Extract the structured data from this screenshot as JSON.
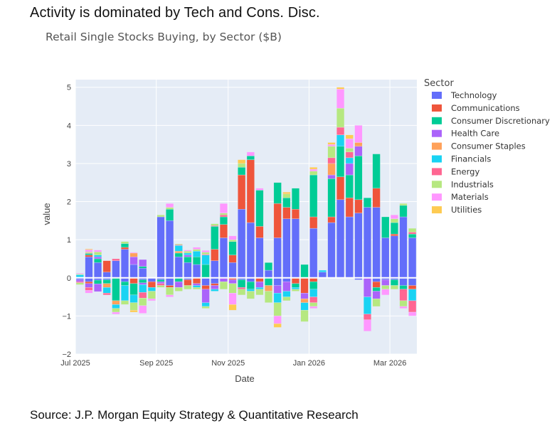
{
  "headline": "Activity is dominated by Tech and Cons. Disc.",
  "source": "Source: J.P. Morgan Equity Strategy & Quantitative Research",
  "chart_data": {
    "type": "bar",
    "stacked": true,
    "title": "Retail Single Stocks Buying, by Sector ($B)",
    "xlabel": "Date",
    "ylabel": "value",
    "ylim": [
      -2,
      5.2
    ],
    "yticks": [
      -2,
      -1,
      0,
      1,
      2,
      3,
      4,
      5
    ],
    "x_tick_labels": [
      "Jul 2025",
      "Sep 2025",
      "Nov 2025",
      "Jan 2026",
      "Mar 2026"
    ],
    "x_tick_week_index": [
      0,
      9,
      17,
      26,
      35
    ],
    "legend_title": "Sector",
    "grid": true,
    "sectors": [
      {
        "name": "Technology",
        "color": "#636EFA"
      },
      {
        "name": "Communications",
        "color": "#EF553B"
      },
      {
        "name": "Consumer Discretionary",
        "color": "#00CC96"
      },
      {
        "name": "Health Care",
        "color": "#AB63FA"
      },
      {
        "name": "Consumer Staples",
        "color": "#FFA15A"
      },
      {
        "name": "Financials",
        "color": "#19D3F3"
      },
      {
        "name": "Energy",
        "color": "#FF6692"
      },
      {
        "name": "Industrials",
        "color": "#B6E880"
      },
      {
        "name": "Materials",
        "color": "#FF97FF"
      },
      {
        "name": "Utilities",
        "color": "#FECB52"
      }
    ],
    "weeks": [
      {
        "pos": [
          0,
          0,
          0.02,
          0,
          0,
          0.06,
          0,
          0.02,
          0.02,
          0
        ],
        "neg": [
          -0.05,
          0,
          0,
          -0.05,
          0,
          0,
          -0.03,
          -0.05,
          0,
          0
        ]
      },
      {
        "pos": [
          0.55,
          0.05,
          0.04,
          0,
          0.02,
          0,
          0,
          0.02,
          0.06,
          0.02
        ],
        "neg": [
          -0.1,
          -0.05,
          0,
          -0.1,
          0,
          0,
          -0.08,
          0,
          -0.07,
          0
        ]
      },
      {
        "pos": [
          0.4,
          0,
          0.1,
          0.05,
          0,
          0.05,
          0,
          0.08,
          0.05,
          0
        ],
        "neg": [
          -0.06,
          0,
          -0.1,
          -0.2,
          0,
          0,
          0,
          0,
          0,
          0
        ]
      },
      {
        "pos": [
          0.15,
          0.3,
          0,
          0,
          0,
          0,
          0,
          0,
          0,
          0
        ],
        "neg": [
          -0.05,
          0,
          -0.1,
          0,
          -0.1,
          -0.15,
          -0.05,
          0,
          0,
          0
        ]
      },
      {
        "pos": [
          0.45,
          0,
          0,
          0,
          0,
          0,
          0.05,
          0,
          0,
          0
        ],
        "neg": [
          0,
          0,
          -0.6,
          0,
          -0.1,
          -0.1,
          0,
          -0.1,
          -0.05,
          0
        ]
      },
      {
        "pos": [
          0.75,
          0.05,
          0.1,
          0,
          0,
          0,
          0,
          0.05,
          0,
          0
        ],
        "neg": [
          -0.1,
          0,
          -0.1,
          0,
          0,
          -0.4,
          0,
          -0.1,
          0,
          0
        ]
      },
      {
        "pos": [
          0.35,
          0,
          0,
          0.2,
          0.1,
          0,
          0,
          0,
          0.02,
          0
        ],
        "neg": [
          0,
          -0.15,
          -0.3,
          0,
          0,
          -0.2,
          0,
          -0.2,
          0,
          -0.05
        ]
      },
      {
        "pos": [
          0.25,
          0,
          0.05,
          0.18,
          0,
          0,
          0,
          0,
          0,
          0
        ],
        "neg": [
          -0.05,
          0,
          -0.08,
          -0.05,
          0,
          -0.2,
          -0.15,
          -0.2,
          -0.2,
          0
        ]
      },
      {
        "pos": [
          0,
          0,
          0,
          0,
          0,
          0,
          0,
          0,
          0,
          0
        ],
        "neg": [
          -0.1,
          -0.15,
          0,
          0,
          0,
          -0.1,
          0,
          -0.2,
          -0.05,
          0
        ]
      },
      {
        "pos": [
          1.6,
          0,
          0,
          0,
          0,
          0,
          0,
          0.05,
          0,
          0
        ],
        "neg": [
          -0.05,
          0,
          -0.05,
          -0.05,
          0,
          0,
          -0.05,
          -0.05,
          0,
          0
        ]
      },
      {
        "pos": [
          1.5,
          0,
          0.3,
          0,
          0,
          0,
          0,
          0.05,
          0.1,
          0
        ],
        "neg": [
          -0.2,
          -0.05,
          0,
          0,
          0,
          0,
          0,
          -0.2,
          -0.05,
          0
        ]
      },
      {
        "pos": [
          0.55,
          0,
          0.1,
          0,
          0.05,
          0.15,
          0.02,
          0.02,
          0,
          0
        ],
        "neg": [
          0,
          0,
          -0.1,
          -0.15,
          0,
          0,
          0,
          -0.1,
          0,
          0
        ]
      },
      {
        "pos": [
          0.4,
          0,
          0.15,
          0.05,
          0,
          0.05,
          0,
          0.05,
          0.03,
          0
        ],
        "neg": [
          -0.05,
          -0.15,
          0,
          0,
          0,
          0,
          0,
          -0.1,
          0,
          0
        ]
      },
      {
        "pos": [
          0.35,
          0,
          0.2,
          0,
          0,
          0.15,
          0,
          0.05,
          0.05,
          0
        ],
        "neg": [
          0,
          -0.15,
          0,
          -0.05,
          0,
          -0.05,
          0,
          -0.05,
          0,
          0
        ]
      },
      {
        "pos": [
          0,
          0,
          0.35,
          0,
          0,
          0.25,
          0.02,
          0.05,
          0.05,
          0
        ],
        "neg": [
          -0.2,
          -0.1,
          0,
          -0.35,
          0,
          -0.1,
          0,
          -0.05,
          0,
          0
        ]
      },
      {
        "pos": [
          0.45,
          0.3,
          0.6,
          0,
          0,
          0,
          0.02,
          0.05,
          0,
          0
        ],
        "neg": [
          -0.15,
          -0.05,
          0,
          -0.1,
          0,
          -0.05,
          0,
          0,
          0,
          0
        ]
      },
      {
        "pos": [
          1.05,
          0.35,
          0.2,
          0,
          0,
          0,
          0.05,
          0.05,
          0.25,
          0
        ],
        "neg": [
          0,
          0,
          0,
          -0.1,
          0,
          0,
          0,
          -0.2,
          0,
          0
        ]
      },
      {
        "pos": [
          0.4,
          0.2,
          0.35,
          0,
          0,
          0,
          0,
          0.05,
          0.1,
          0
        ],
        "neg": [
          0,
          -0.05,
          0,
          -0.1,
          0,
          0,
          0,
          -0.25,
          -0.3,
          -0.15
        ]
      },
      {
        "pos": [
          1.8,
          0.9,
          0.2,
          0,
          0,
          0,
          0,
          0.1,
          0,
          0.1
        ],
        "neg": [
          -0.05,
          0,
          -0.2,
          0,
          0,
          0,
          -0.05,
          -0.15,
          0,
          0
        ]
      },
      {
        "pos": [
          1.45,
          1.65,
          0.1,
          0,
          0,
          0,
          0,
          0,
          0.1,
          0
        ],
        "neg": [
          -0.1,
          0,
          -0.2,
          0,
          0,
          -0.05,
          0,
          -0.2,
          0,
          0
        ]
      },
      {
        "pos": [
          1.05,
          0.3,
          0.95,
          0,
          0,
          0,
          0,
          0,
          0.05,
          0
        ],
        "neg": [
          0,
          -0.1,
          0,
          -0.15,
          0,
          -0.05,
          0,
          -0.15,
          0,
          0
        ]
      },
      {
        "pos": [
          0.2,
          0,
          0.2,
          0,
          0,
          0,
          0,
          0,
          0,
          0
        ],
        "neg": [
          0,
          0,
          -0.2,
          0,
          -0.15,
          0,
          0,
          -0.3,
          0,
          0
        ]
      },
      {
        "pos": [
          1.05,
          0.9,
          0.55,
          0,
          0,
          0,
          0,
          0,
          0,
          0
        ],
        "neg": [
          -0.2,
          0,
          0,
          -0.2,
          0,
          -0.25,
          0,
          -0.35,
          -0.2,
          -0.1
        ]
      },
      {
        "pos": [
          1.55,
          0.3,
          0.25,
          0,
          0,
          0,
          0,
          0.1,
          0,
          0.05
        ],
        "neg": [
          -0.1,
          0,
          0,
          -0.25,
          0,
          -0.15,
          0,
          -0.1,
          0,
          0
        ]
      },
      {
        "pos": [
          1.55,
          0.25,
          0.55,
          0,
          0,
          0,
          0,
          0,
          0,
          0
        ],
        "neg": [
          0,
          -0.15,
          -0.1,
          0,
          0,
          -0.05,
          0,
          -0.05,
          0,
          0
        ]
      },
      {
        "pos": [
          0,
          0,
          0.35,
          0,
          0,
          0,
          0,
          0,
          0,
          0
        ],
        "neg": [
          0,
          -0.4,
          0,
          -0.15,
          -0.1,
          -0.2,
          0,
          -0.3,
          0,
          0
        ]
      },
      {
        "pos": [
          1.3,
          0.3,
          1.1,
          0,
          0,
          0,
          0,
          0.1,
          0.05,
          0.05
        ],
        "neg": [
          0,
          -0.1,
          -0.2,
          0,
          0,
          -0.2,
          -0.15,
          -0.1,
          -0.05,
          0
        ]
      },
      {
        "pos": [
          0.15,
          0,
          0,
          0,
          0,
          0.05,
          0,
          0,
          0,
          0
        ],
        "neg": [
          0,
          0,
          0,
          0,
          0,
          0,
          0,
          0,
          0,
          0
        ]
      },
      {
        "pos": [
          1.45,
          0.15,
          1.0,
          0.1,
          0.3,
          0,
          0.15,
          0.3,
          0.05,
          0.05
        ],
        "neg": [
          0,
          0,
          0,
          0,
          0,
          0,
          0,
          0,
          0,
          0
        ]
      },
      {
        "pos": [
          2.05,
          0.6,
          0.8,
          0,
          0,
          0.3,
          0.2,
          0.5,
          0.5,
          0.05
        ],
        "neg": [
          0,
          0,
          0,
          0,
          0,
          0,
          0,
          0,
          0,
          0
        ]
      },
      {
        "pos": [
          1.6,
          0.5,
          0.6,
          0.3,
          0,
          0.15,
          0.15,
          0.1,
          0.25,
          0.1
        ],
        "neg": [
          0,
          0,
          0,
          0,
          0,
          0,
          0,
          0,
          0,
          0
        ]
      },
      {
        "pos": [
          1.7,
          0.35,
          1.15,
          0.25,
          0.1,
          0,
          0,
          0,
          0.45,
          0
        ],
        "neg": [
          -0.05,
          0,
          0,
          0,
          0,
          0,
          0,
          0,
          0,
          0
        ]
      },
      {
        "pos": [
          1.85,
          0,
          0.25,
          0,
          0,
          0,
          0,
          0,
          0,
          0
        ],
        "neg": [
          0,
          0,
          0,
          -0.5,
          0,
          -0.45,
          -0.15,
          0,
          -0.3,
          0
        ]
      },
      {
        "pos": [
          1.85,
          0.5,
          0.9,
          0,
          0,
          0,
          0,
          0,
          0,
          0
        ],
        "neg": [
          -0.1,
          -0.15,
          -0.1,
          -0.2,
          0,
          0,
          0,
          -0.2,
          0,
          0
        ]
      },
      {
        "pos": [
          1.05,
          0,
          0.55,
          0,
          0,
          0,
          0,
          0,
          0,
          0
        ],
        "neg": [
          -0.05,
          0,
          0,
          -0.15,
          0,
          0,
          0,
          -0.1,
          -0.15,
          0
        ]
      },
      {
        "pos": [
          1.1,
          0.05,
          0.3,
          0,
          0,
          0,
          0,
          0.1,
          0.1,
          0
        ],
        "neg": [
          -0.05,
          0,
          -0.15,
          0,
          0,
          0,
          0,
          -0.1,
          0,
          0
        ]
      },
      {
        "pos": [
          1.6,
          0,
          0.3,
          0,
          0,
          0,
          0,
          0.05,
          0,
          0
        ],
        "neg": [
          -0.2,
          0,
          -0.1,
          0,
          0,
          0,
          -0.3,
          -0.15,
          -0.05,
          0
        ]
      },
      {
        "pos": [
          1.05,
          0,
          0.1,
          0,
          0,
          0,
          0.05,
          0.1,
          0,
          0
        ],
        "neg": [
          -0.2,
          -0.1,
          0,
          0,
          0,
          -0.3,
          -0.3,
          0,
          -0.1,
          0
        ]
      }
    ]
  }
}
